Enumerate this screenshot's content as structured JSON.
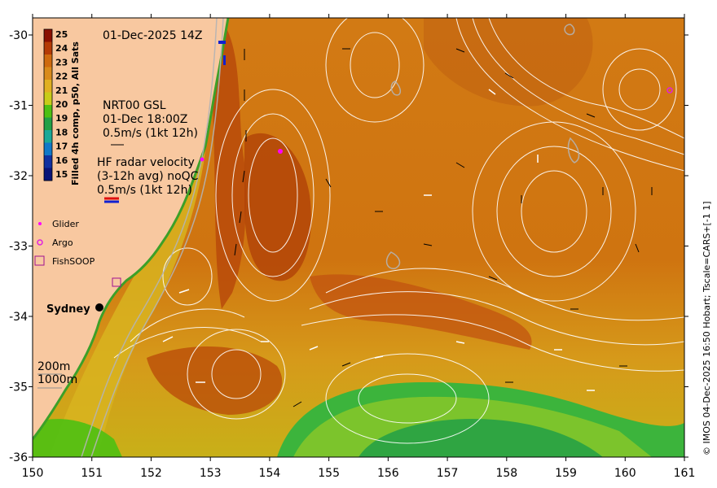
{
  "map": {
    "timestamp": "01-Dec-2025 14Z",
    "colorbar_title": "Filled 4h comp, p50, All Sats",
    "colorbar_ticks": [
      "25",
      "24",
      "23",
      "22",
      "21",
      "20",
      "19",
      "18",
      "17",
      "16",
      "15"
    ],
    "colorbar_colors": [
      "#8a0f00",
      "#b53a05",
      "#cf6a0e",
      "#d98a1a",
      "#e0b020",
      "#c8cc18",
      "#4ec012",
      "#22a046",
      "#1aa898",
      "#1078c8",
      "#1030a0",
      "#0a1478"
    ],
    "nrt_legend": {
      "line1": "NRT00 GSL",
      "line2": "01-Dec 18:00Z",
      "line3": "0.5m/s (1kt 12h)"
    },
    "hf_legend": {
      "line1": "HF radar velocity",
      "line2": "(3-12h avg) noQC",
      "line3": "0.5m/s (1kt 12h)"
    },
    "markers": {
      "glider": "Glider",
      "argo": "Argo",
      "fishsoop": "FishSOOP"
    },
    "city": "Sydney",
    "depth_labels": [
      "200m",
      "1000m"
    ],
    "credit": "© IMOS 04-Dec-2025 16:50 Hobart; Tscale=CARS+[-1 1]",
    "x_ticks": [
      "150",
      "151",
      "152",
      "153",
      "154",
      "155",
      "156",
      "157",
      "158",
      "159",
      "160",
      "161"
    ],
    "y_ticks": [
      "-30",
      "-31",
      "-32",
      "-33",
      "-34",
      "-35",
      "-36"
    ],
    "colors": {
      "land": "#f8c8a0",
      "cold": "#3cb43c",
      "warm": "#d07818",
      "hot": "#a02008",
      "glider": "#ff00ff",
      "argo": "#e020e0"
    }
  }
}
